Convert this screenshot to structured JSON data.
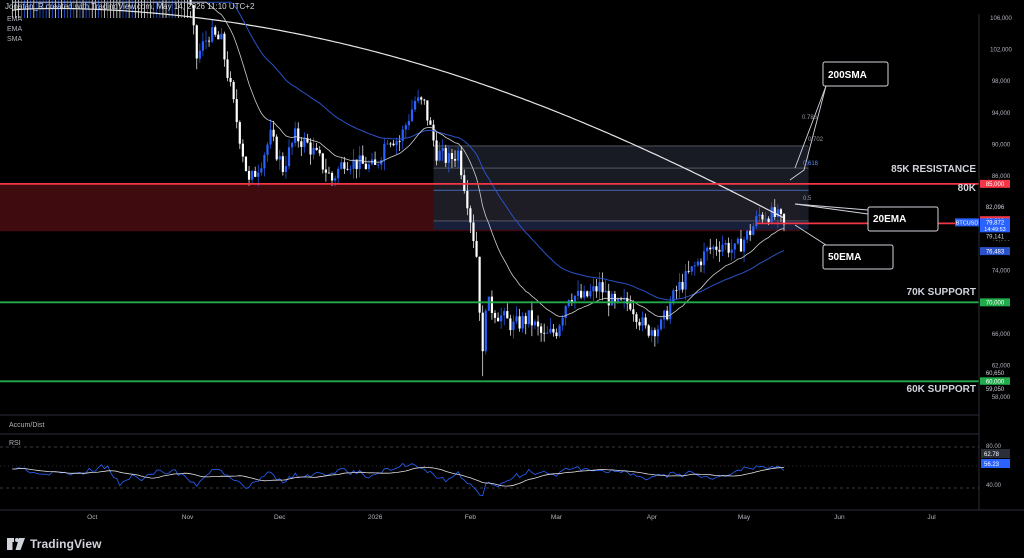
{
  "header": {
    "attribution": "Jonatan_R created with TradingView.com, May 14, 2026 11:10 UTC+2",
    "indicators": [
      "EMA",
      "EMA",
      "SMA"
    ]
  },
  "colors": {
    "bull": "#2962ff",
    "bear": "#ffffff",
    "ema20": "#cfcfcf",
    "ema50": "#2a52c8",
    "sma200": "#e6e6e6",
    "resistance": "#f23645",
    "support": "#22ab4a",
    "level80k": "#f23645"
  },
  "annotations": {
    "sma200": "200SMA",
    "ema20": "20EMA",
    "ema50": "50EMA",
    "resistance": "85K RESISTANCE",
    "level80": "80K",
    "support70": "70K SUPPORT",
    "support60": "60K SUPPORT"
  },
  "fib": [
    "0.786",
    "0.702",
    "0.618",
    "0.5"
  ],
  "price_labels": {
    "p82096": "82,096",
    "p79872": "79,872",
    "symbol": "BTCUSD",
    "countdown": "14:49:53",
    "p79141": "79,141",
    "p76483": "76,483",
    "p60650": "60,650",
    "p59050": "59,050",
    "r85": "85,000",
    "r80": "80,000",
    "s70": "70,000",
    "s60": "60,000"
  },
  "rsi": {
    "label": "RSI",
    "value_a": "62.78",
    "value_b": "56.23",
    "ticks": [
      "80.00",
      "40.00"
    ]
  },
  "accum": {
    "label": "Accum/Dist"
  },
  "footer": {
    "brand": "TradingView"
  },
  "chart_data": {
    "type": "candlestick",
    "symbol": "BTCUSD",
    "y_axis_ticks": [
      106000,
      102000,
      98000,
      94000,
      90000,
      86000,
      82000,
      78000,
      74000,
      70000,
      66000,
      62000,
      58000
    ],
    "ylim": [
      57000,
      106000
    ],
    "x_axis_labels": [
      "Oct",
      "Nov",
      "Dec",
      "2026",
      "Feb",
      "Mar",
      "Apr",
      "May",
      "Jun",
      "Jul"
    ],
    "levels": [
      {
        "name": "85K RESISTANCE",
        "value": 85000
      },
      {
        "name": "80K",
        "value": 80000
      },
      {
        "name": "70K SUPPORT",
        "value": 70000
      },
      {
        "name": "60K SUPPORT",
        "value": 60000
      }
    ],
    "resistance_zone": [
      79000,
      85000
    ],
    "fib_levels": [
      {
        "label": "0.786",
        "value": 89800
      },
      {
        "label": "0.702",
        "value": 87000
      },
      {
        "label": "0.618",
        "value": 84200
      },
      {
        "label": "0.5",
        "value": 80300
      }
    ],
    "last_price": 79872,
    "ema20_last": 79141,
    "ema50_last": 76483,
    "close_path": [
      {
        "date": "2025-09-05",
        "close": 110500
      },
      {
        "date": "2025-09-20",
        "close": 112000
      },
      {
        "date": "2025-10-01",
        "close": 117000
      },
      {
        "date": "2025-10-06",
        "close": 124000
      },
      {
        "date": "2025-10-10",
        "close": 112000
      },
      {
        "date": "2025-10-15",
        "close": 111000
      },
      {
        "date": "2025-10-20",
        "close": 110000
      },
      {
        "date": "2025-10-27",
        "close": 114000
      },
      {
        "date": "2025-11-01",
        "close": 110000
      },
      {
        "date": "2025-11-04",
        "close": 101000
      },
      {
        "date": "2025-11-08",
        "close": 104000
      },
      {
        "date": "2025-11-12",
        "close": 103000
      },
      {
        "date": "2025-11-16",
        "close": 95000
      },
      {
        "date": "2025-11-21",
        "close": 85000
      },
      {
        "date": "2025-11-25",
        "close": 88000
      },
      {
        "date": "2025-11-28",
        "close": 91000
      },
      {
        "date": "2025-12-02",
        "close": 87000
      },
      {
        "date": "2025-12-06",
        "close": 91000
      },
      {
        "date": "2025-12-10",
        "close": 90000
      },
      {
        "date": "2025-12-14",
        "close": 88000
      },
      {
        "date": "2025-12-18",
        "close": 85500
      },
      {
        "date": "2025-12-22",
        "close": 88000
      },
      {
        "date": "2025-12-27",
        "close": 87500
      },
      {
        "date": "2026-01-01",
        "close": 87000
      },
      {
        "date": "2026-01-05",
        "close": 91000
      },
      {
        "date": "2026-01-09",
        "close": 90500
      },
      {
        "date": "2026-01-14",
        "close": 95500
      },
      {
        "date": "2026-01-17",
        "close": 95000
      },
      {
        "date": "2026-01-21",
        "close": 89000
      },
      {
        "date": "2026-01-25",
        "close": 88000
      },
      {
        "date": "2026-01-28",
        "close": 89000
      },
      {
        "date": "2026-01-31",
        "close": 83000
      },
      {
        "date": "2026-02-03",
        "close": 76000
      },
      {
        "date": "2026-02-05",
        "close": 63000
      },
      {
        "date": "2026-02-06",
        "close": 70000
      },
      {
        "date": "2026-02-10",
        "close": 68500
      },
      {
        "date": "2026-02-15",
        "close": 67000
      },
      {
        "date": "2026-02-20",
        "close": 68000
      },
      {
        "date": "2026-02-25",
        "close": 65500
      },
      {
        "date": "2026-03-01",
        "close": 66500
      },
      {
        "date": "2026-03-05",
        "close": 71000
      },
      {
        "date": "2026-03-10",
        "close": 70500
      },
      {
        "date": "2026-03-15",
        "close": 72000
      },
      {
        "date": "2026-03-20",
        "close": 69500
      },
      {
        "date": "2026-03-25",
        "close": 70000
      },
      {
        "date": "2026-03-30",
        "close": 66500
      },
      {
        "date": "2026-04-04",
        "close": 67000
      },
      {
        "date": "2026-04-09",
        "close": 71500
      },
      {
        "date": "2026-04-14",
        "close": 74000
      },
      {
        "date": "2026-04-19",
        "close": 76500
      },
      {
        "date": "2026-04-24",
        "close": 77500
      },
      {
        "date": "2026-04-28",
        "close": 76500
      },
      {
        "date": "2026-05-03",
        "close": 79000
      },
      {
        "date": "2026-05-06",
        "close": 81000
      },
      {
        "date": "2026-05-09",
        "close": 81200
      },
      {
        "date": "2026-05-12",
        "close": 80700
      },
      {
        "date": "2026-05-14",
        "close": 79872
      }
    ]
  }
}
